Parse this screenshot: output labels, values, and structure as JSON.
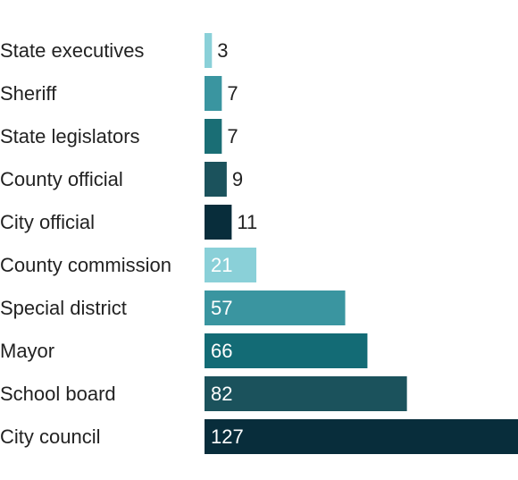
{
  "chart_data": {
    "type": "bar",
    "orientation": "horizontal",
    "categories": [
      "State executives",
      "Sheriff",
      "State legislators",
      "County official",
      "City official",
      "County commission",
      "Special district",
      "Mayor",
      "School board",
      "City council"
    ],
    "values": [
      3,
      7,
      7,
      9,
      11,
      21,
      57,
      66,
      82,
      127
    ],
    "value_labels": [
      "3",
      "7",
      "7",
      "9",
      "11",
      "21",
      "57",
      "66",
      "82",
      "127"
    ],
    "colors": [
      "#8ad0d8",
      "#3a95a0",
      "#1a6e75",
      "#1b525c",
      "#082d3b",
      "#8ad0d8",
      "#3a95a0",
      "#136b75",
      "#1b525c",
      "#082d3b"
    ],
    "title": "",
    "xlabel": "",
    "ylabel": "",
    "xlim": [
      0,
      127
    ],
    "grid": false,
    "legend": "none"
  }
}
